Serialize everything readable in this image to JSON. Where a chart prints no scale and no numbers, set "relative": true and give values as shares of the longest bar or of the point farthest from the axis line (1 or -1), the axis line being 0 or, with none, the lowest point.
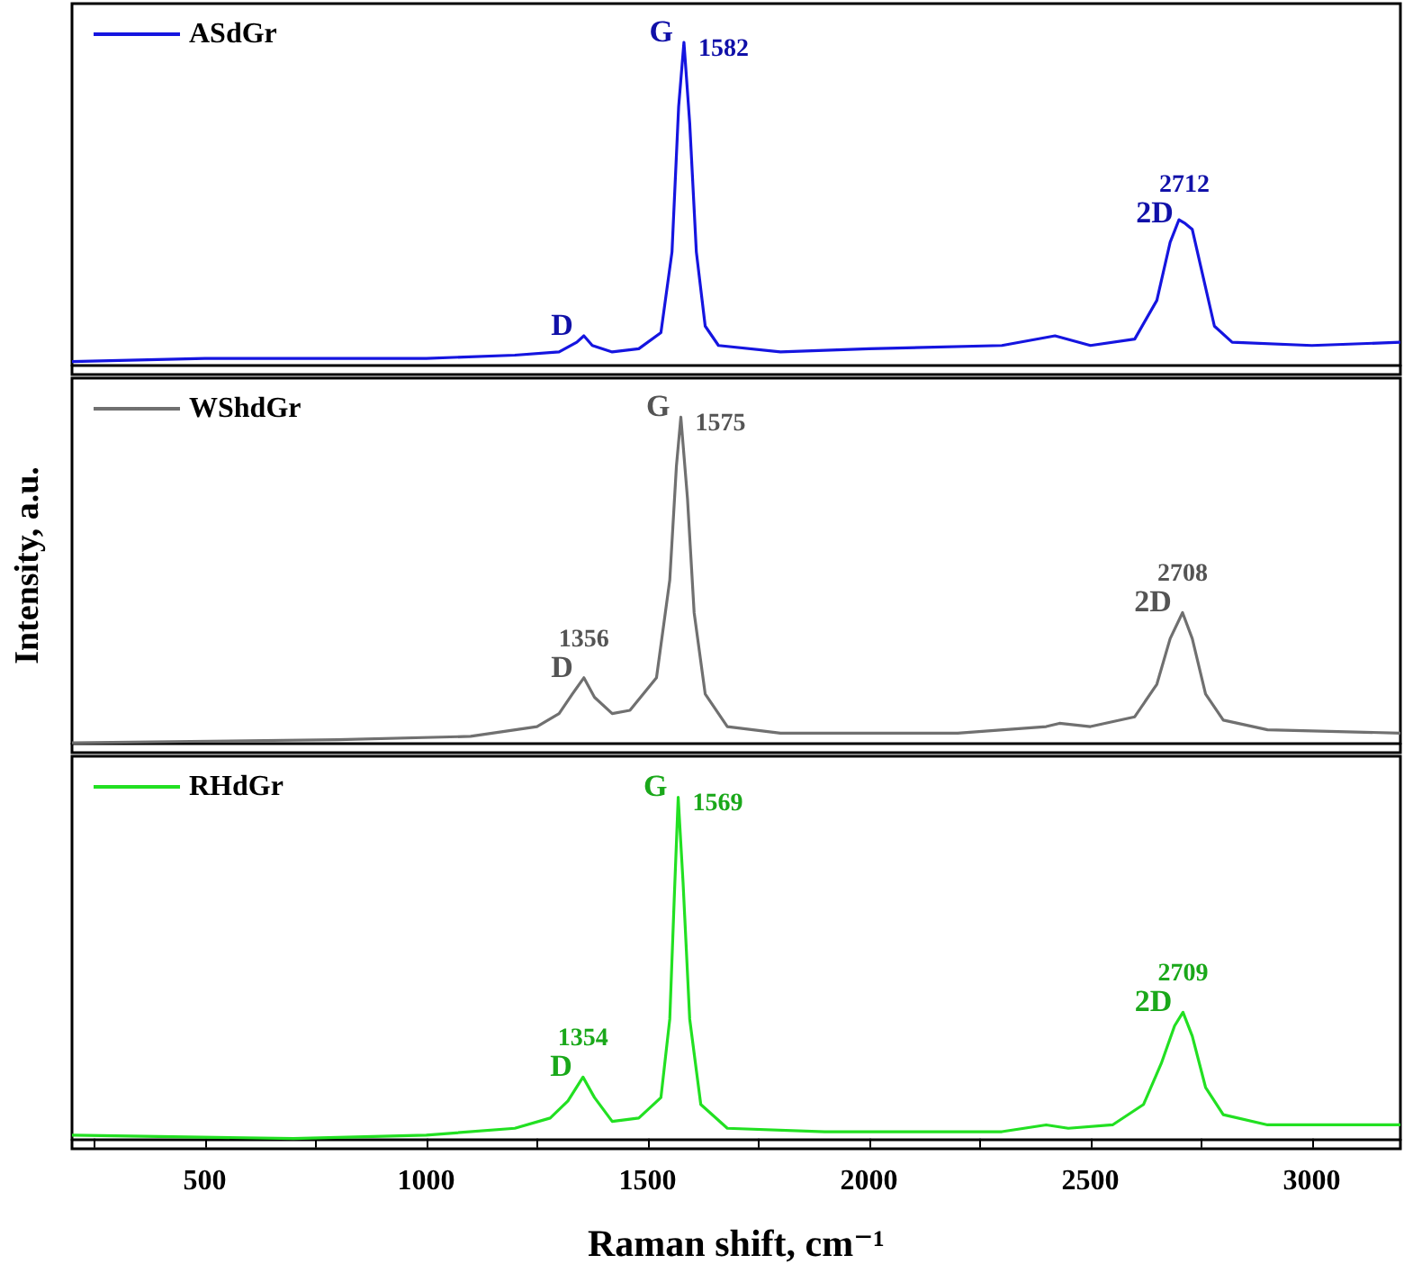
{
  "chart_data": [
    {
      "type": "line",
      "relative": true,
      "legend": "top left",
      "tick_labels": false,
      "xlim": [
        200,
        3200
      ],
      "x": [
        200,
        500,
        1000,
        1200,
        1300,
        1340,
        1356,
        1375,
        1420,
        1480,
        1530,
        1555,
        1570,
        1582,
        1595,
        1610,
        1630,
        1660,
        1800,
        2000,
        2300,
        2420,
        2500,
        2600,
        2650,
        2680,
        2700,
        2712,
        2730,
        2750,
        2780,
        2820,
        3000,
        3200
      ],
      "series": [
        {
          "name": "ASdGr",
          "color": "#1515e0",
          "values": [
            0.01,
            0.02,
            0.02,
            0.03,
            0.04,
            0.07,
            0.09,
            0.06,
            0.04,
            0.05,
            0.1,
            0.35,
            0.8,
            1,
            0.75,
            0.35,
            0.12,
            0.06,
            0.04,
            0.05,
            0.06,
            0.09,
            0.06,
            0.08,
            0.2,
            0.38,
            0.45,
            0.44,
            0.42,
            0.3,
            0.12,
            0.07,
            0.06,
            0.07
          ]
        }
      ],
      "annotations": [
        {
          "text": "D",
          "x": 1356,
          "y": 0.09
        },
        {
          "text": "G",
          "x": 1582,
          "y": 1
        },
        {
          "text": "1582",
          "x": 1582,
          "y": 1
        },
        {
          "text": "2D",
          "x": 2712,
          "y": 0.44
        },
        {
          "text": "2712",
          "x": 2712,
          "y": 0.44
        }
      ]
    },
    {
      "type": "line",
      "relative": true,
      "legend": "top left",
      "tick_labels": false,
      "xlim": [
        200,
        3200
      ],
      "ylabel": "Intensity, a.u.",
      "x": [
        200,
        800,
        1100,
        1250,
        1300,
        1330,
        1356,
        1380,
        1420,
        1460,
        1520,
        1550,
        1565,
        1575,
        1590,
        1605,
        1630,
        1680,
        1800,
        2200,
        2400,
        2430,
        2500,
        2600,
        2650,
        2680,
        2708,
        2730,
        2760,
        2800,
        2900,
        3200
      ],
      "series": [
        {
          "name": "WShdGr",
          "color": "#707070",
          "values": [
            0,
            0.01,
            0.02,
            0.05,
            0.09,
            0.15,
            0.2,
            0.14,
            0.09,
            0.1,
            0.2,
            0.5,
            0.85,
            1,
            0.75,
            0.4,
            0.15,
            0.05,
            0.03,
            0.03,
            0.05,
            0.06,
            0.05,
            0.08,
            0.18,
            0.32,
            0.4,
            0.32,
            0.15,
            0.07,
            0.04,
            0.03
          ]
        }
      ],
      "annotations": [
        {
          "text": "D",
          "x": 1356,
          "y": 0.2
        },
        {
          "text": "1356",
          "x": 1356,
          "y": 0.2
        },
        {
          "text": "G",
          "x": 1575,
          "y": 1
        },
        {
          "text": "1575",
          "x": 1575,
          "y": 1
        },
        {
          "text": "2D",
          "x": 2708,
          "y": 0.4
        },
        {
          "text": "2708",
          "x": 2708,
          "y": 0.4
        }
      ]
    },
    {
      "type": "line",
      "relative": true,
      "legend": "top left",
      "tick_labels": "x",
      "xlim": [
        200,
        3200
      ],
      "xlabel": "Raman shift, cm⁻¹",
      "xticks": [
        {
          "value": 250,
          "label": null
        },
        500,
        {
          "value": 750,
          "label": null
        },
        1000,
        {
          "value": 1250,
          "label": null
        },
        1500,
        {
          "value": 1750,
          "label": null
        },
        2000,
        {
          "value": 2250,
          "label": null
        },
        2500,
        {
          "value": 2750,
          "label": null
        },
        3000
      ],
      "x": [
        200,
        700,
        1000,
        1200,
        1280,
        1320,
        1354,
        1380,
        1420,
        1480,
        1530,
        1550,
        1560,
        1569,
        1580,
        1595,
        1620,
        1680,
        1900,
        2300,
        2400,
        2450,
        2550,
        2620,
        2660,
        2690,
        2709,
        2730,
        2760,
        2800,
        2900,
        3100,
        3200
      ],
      "series": [
        {
          "name": "RHdGr",
          "color": "#22e022",
          "values": [
            0.01,
            0,
            0.01,
            0.03,
            0.06,
            0.11,
            0.18,
            0.12,
            0.05,
            0.06,
            0.12,
            0.35,
            0.7,
            1,
            0.75,
            0.35,
            0.1,
            0.03,
            0.02,
            0.02,
            0.04,
            0.03,
            0.04,
            0.1,
            0.22,
            0.33,
            0.37,
            0.3,
            0.15,
            0.07,
            0.04,
            0.04,
            0.04
          ]
        }
      ],
      "annotations": [
        {
          "text": "D",
          "x": 1354,
          "y": 0.18
        },
        {
          "text": "1354",
          "x": 1354,
          "y": 0.18
        },
        {
          "text": "G",
          "x": 1569,
          "y": 1
        },
        {
          "text": "1569",
          "x": 1569,
          "y": 1
        },
        {
          "text": "2D",
          "x": 2709,
          "y": 0.37
        },
        {
          "text": "2709",
          "x": 2709,
          "y": 0.37
        }
      ]
    }
  ]
}
